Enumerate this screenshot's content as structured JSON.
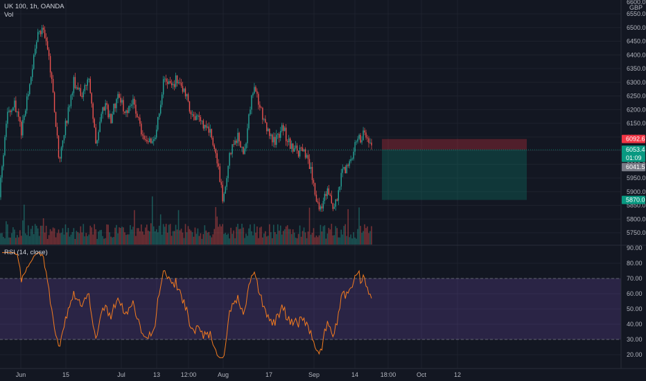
{
  "header": {
    "symbol": "UK 100, 1h, OANDA",
    "volume_label": "Vol",
    "rsi_label": "RSI (14, close)"
  },
  "price_axis": {
    "currency": "GBP",
    "top_partial_label": "6600.0",
    "ticks": [
      "6550.0",
      "6500.0",
      "6450.0",
      "6400.0",
      "6350.0",
      "6300.0",
      "6250.0",
      "6200.0",
      "6150.0",
      "6100.0",
      "6050.0",
      "6000.0",
      "5950.0",
      "5900.0",
      "5850.0",
      "5800.0",
      "5750.0"
    ]
  },
  "price_tags": [
    {
      "label": "6092.6",
      "color": "#f23645",
      "value": 6092.6
    },
    {
      "label": "6053.4",
      "color": "#089981",
      "value": 6053.4
    },
    {
      "label": "01:09",
      "color": "#089981",
      "value": 6024.0
    },
    {
      "label": "6041.5",
      "color": "#787b86",
      "value": 5990.0
    },
    {
      "label": "5870.0",
      "color": "#089981",
      "value": 5870.0
    }
  ],
  "rsi_axis": {
    "ticks": [
      "90.00",
      "80.00",
      "70.00",
      "60.00",
      "50.00",
      "40.00",
      "30.00",
      "20.00"
    ]
  },
  "time_axis": {
    "labels": [
      "Jun",
      "15",
      "Jul",
      "13",
      "12:00",
      "Aug",
      "17",
      "Sep",
      "14",
      "18:00",
      "Oct",
      "12"
    ]
  },
  "position": {
    "entry": 6053.4,
    "stop": 6092.6,
    "target": 5870.0
  },
  "colors": {
    "background": "#131722",
    "up": "#26a69a",
    "down": "#ef5350",
    "rsi_line": "#f57c1f",
    "rsi_band": "#7e57c2",
    "grid": "#1e222d",
    "stop_zone": "#f23645",
    "target_zone": "#089981"
  },
  "chart_data": {
    "type": "candlestick",
    "title": "UK 100, 1h, OANDA",
    "y_range": [
      5720,
      6610
    ],
    "price_anchors": [
      {
        "t": 0.0,
        "p": 5880
      },
      {
        "t": 0.02,
        "p": 6170
      },
      {
        "t": 0.04,
        "p": 6220
      },
      {
        "t": 0.06,
        "p": 6120
      },
      {
        "t": 0.08,
        "p": 6280
      },
      {
        "t": 0.1,
        "p": 6460
      },
      {
        "t": 0.12,
        "p": 6500
      },
      {
        "t": 0.14,
        "p": 6320
      },
      {
        "t": 0.16,
        "p": 6020
      },
      {
        "t": 0.18,
        "p": 6160
      },
      {
        "t": 0.2,
        "p": 6300
      },
      {
        "t": 0.22,
        "p": 6250
      },
      {
        "t": 0.24,
        "p": 6310
      },
      {
        "t": 0.26,
        "p": 6080
      },
      {
        "t": 0.28,
        "p": 6220
      },
      {
        "t": 0.3,
        "p": 6170
      },
      {
        "t": 0.32,
        "p": 6260
      },
      {
        "t": 0.34,
        "p": 6190
      },
      {
        "t": 0.36,
        "p": 6240
      },
      {
        "t": 0.38,
        "p": 6130
      },
      {
        "t": 0.4,
        "p": 6080
      },
      {
        "t": 0.42,
        "p": 6100
      },
      {
        "t": 0.44,
        "p": 6300
      },
      {
        "t": 0.46,
        "p": 6280
      },
      {
        "t": 0.48,
        "p": 6320
      },
      {
        "t": 0.5,
        "p": 6250
      },
      {
        "t": 0.52,
        "p": 6180
      },
      {
        "t": 0.54,
        "p": 6150
      },
      {
        "t": 0.56,
        "p": 6140
      },
      {
        "t": 0.58,
        "p": 6060
      },
      {
        "t": 0.6,
        "p": 5870
      },
      {
        "t": 0.62,
        "p": 6040
      },
      {
        "t": 0.64,
        "p": 6100
      },
      {
        "t": 0.66,
        "p": 6040
      },
      {
        "t": 0.68,
        "p": 6280
      },
      {
        "t": 0.7,
        "p": 6220
      },
      {
        "t": 0.72,
        "p": 6120
      },
      {
        "t": 0.74,
        "p": 6080
      },
      {
        "t": 0.76,
        "p": 6140
      },
      {
        "t": 0.78,
        "p": 6070
      },
      {
        "t": 0.8,
        "p": 6050
      },
      {
        "t": 0.82,
        "p": 6040
      },
      {
        "t": 0.84,
        "p": 5960
      },
      {
        "t": 0.86,
        "p": 5830
      },
      {
        "t": 0.88,
        "p": 5900
      },
      {
        "t": 0.9,
        "p": 5830
      },
      {
        "t": 0.92,
        "p": 5960
      },
      {
        "t": 0.94,
        "p": 6000
      },
      {
        "t": 0.96,
        "p": 6080
      },
      {
        "t": 0.98,
        "p": 6110
      },
      {
        "t": 1.0,
        "p": 6053
      }
    ],
    "rsi": {
      "upper": 70,
      "lower": 30,
      "y_range": [
        14,
        91
      ]
    }
  }
}
